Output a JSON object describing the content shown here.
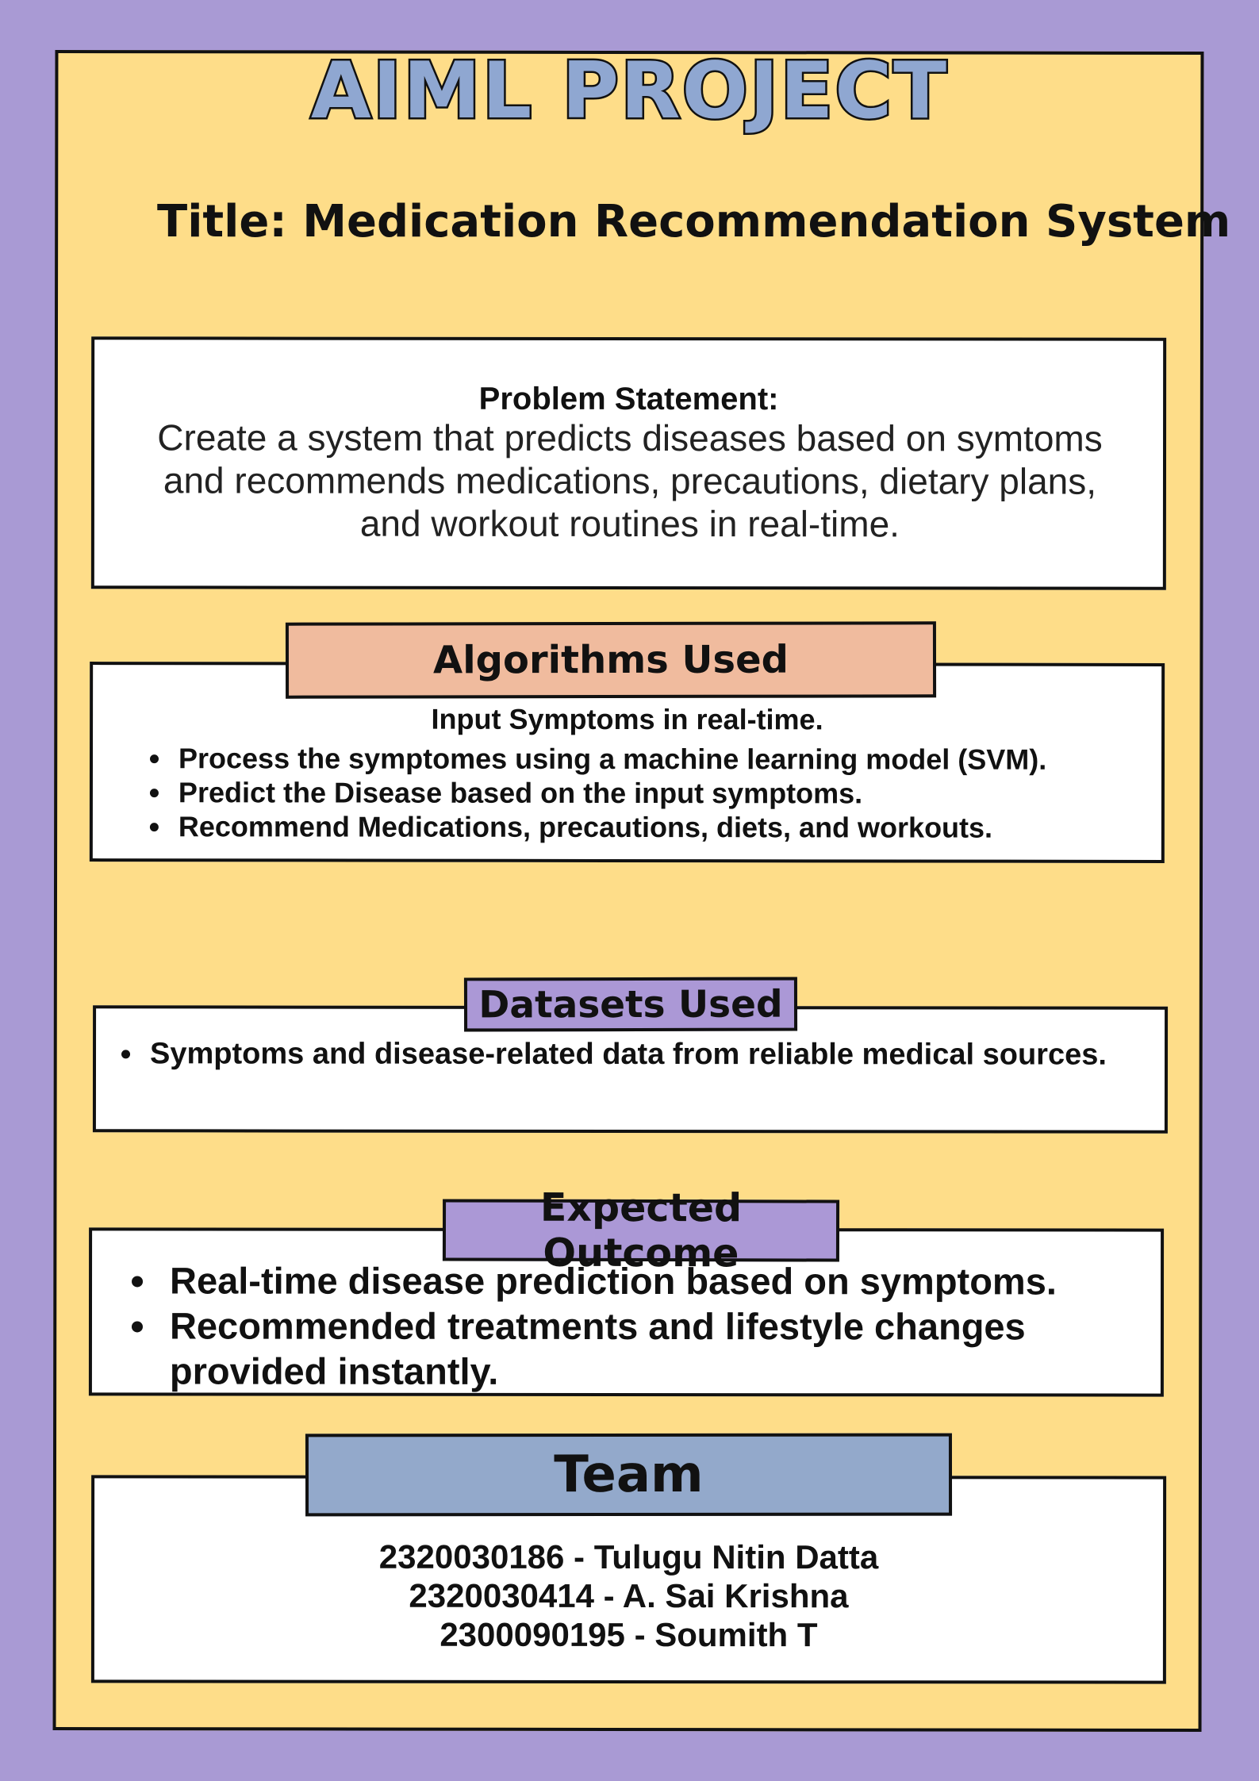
{
  "poster": {
    "project_title": "AIML PROJECT",
    "title": "Title: Medication Recommendation System",
    "colors": {
      "background": "#a99ad4",
      "poster": "#fedd89",
      "algorithms_label": "#f0bb9e",
      "datasets_label": "#ab98d6",
      "outcome_label": "#ab98d6",
      "team_label": "#93a9cb",
      "title_fill": "#8fa7d1"
    }
  },
  "problem": {
    "heading": "Problem Statement:",
    "body": "Create a system that predicts diseases based on symtoms and recommends medications, precautions, dietary plans, and workout routines in real-time."
  },
  "algorithms": {
    "label": "Algorithms Used",
    "first_line": "Input Symptoms in real-time.",
    "items": [
      "Process the symptomes using a machine learning model (SVM).",
      "Predict the Disease based on the input symptoms.",
      "Recommend Medications, precautions, diets, and workouts."
    ]
  },
  "datasets": {
    "label": "Datasets Used",
    "items": [
      "Symptoms and disease-related data from reliable medical sources."
    ]
  },
  "outcome": {
    "label": "Expected Outcome",
    "items": [
      "Real-time disease prediction based on symptoms.",
      "Recommended treatments and lifestyle changes provided instantly."
    ]
  },
  "team": {
    "label": "Team",
    "members": [
      "2320030186 - Tulugu Nitin Datta",
      "2320030414 - A. Sai Krishna",
      "2300090195 - Soumith T"
    ]
  }
}
